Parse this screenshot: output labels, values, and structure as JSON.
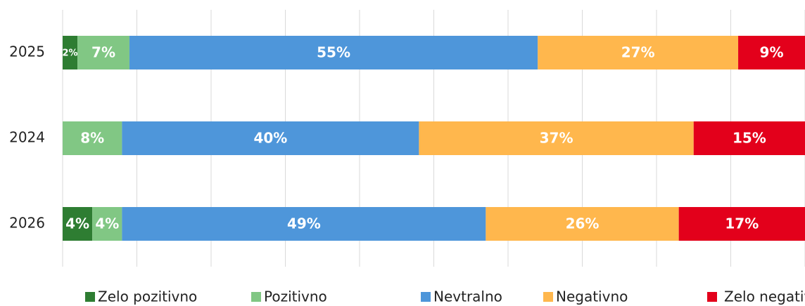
{
  "chart_data": {
    "type": "stacked-barh",
    "categories": [
      "2025",
      "2024",
      "2026"
    ],
    "series": [
      {
        "name": "Zelo pozitivno",
        "color": "#2e7d32",
        "values": [
          2,
          0,
          4
        ],
        "value_labels": [
          "2%",
          null,
          "4%"
        ]
      },
      {
        "name": "Pozitivno",
        "color": "#81c784",
        "values": [
          7,
          8,
          4
        ],
        "value_labels": [
          "7%",
          "8%",
          "4%"
        ]
      },
      {
        "name": "Nevtralno",
        "color": "#4e96da",
        "values": [
          55,
          40,
          49
        ],
        "value_labels": [
          "55%",
          "40%",
          "49%"
        ]
      },
      {
        "name": "Negativno",
        "color": "#ffb74d",
        "values": [
          27,
          37,
          26
        ],
        "value_labels": [
          "27%",
          "37%",
          "26%"
        ]
      },
      {
        "name": "Zelo negativno",
        "color": "#e3001b",
        "values": [
          9,
          15,
          17
        ],
        "value_labels": [
          "9%",
          "15%",
          "17%"
        ]
      }
    ],
    "xlim": [
      0,
      100
    ],
    "xticks": [
      0,
      10,
      20,
      30,
      40,
      50,
      60,
      70,
      80,
      90,
      100
    ],
    "grid": true,
    "legend": "bottom"
  }
}
